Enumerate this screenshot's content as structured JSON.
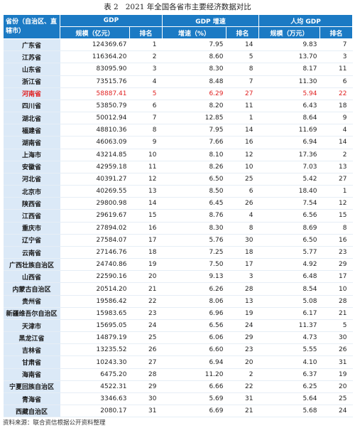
{
  "caption": {
    "number": "表 2",
    "title": "2021 年全国各省市主要经济数据对比"
  },
  "header": {
    "row_label": "省份（自治区、直辖市）",
    "groups": {
      "gdp": "GDP",
      "growth": "GDP 增速",
      "per_capita": "人均 GDP"
    },
    "sub": {
      "scale": "规模（亿元）",
      "rank": "排名",
      "rate": "增速（%）",
      "scale_wan": "规模（万元）"
    }
  },
  "rows": [
    {
      "name": "广东省",
      "gdp": "124369.67",
      "gdp_rank": "1",
      "growth": "7.95",
      "growth_rank": "14",
      "pc": "9.83",
      "pc_rank": "7"
    },
    {
      "name": "江苏省",
      "gdp": "116364.20",
      "gdp_rank": "2",
      "growth": "8.60",
      "growth_rank": "5",
      "pc": "13.70",
      "pc_rank": "3"
    },
    {
      "name": "山东省",
      "gdp": "83095.90",
      "gdp_rank": "3",
      "growth": "8.30",
      "growth_rank": "8",
      "pc": "8.17",
      "pc_rank": "11"
    },
    {
      "name": "浙江省",
      "gdp": "73515.76",
      "gdp_rank": "4",
      "growth": "8.48",
      "growth_rank": "7",
      "pc": "11.30",
      "pc_rank": "6"
    },
    {
      "name": "河南省",
      "gdp": "58887.41",
      "gdp_rank": "5",
      "growth": "6.29",
      "growth_rank": "27",
      "pc": "5.94",
      "pc_rank": "22",
      "highlight": true
    },
    {
      "name": "四川省",
      "gdp": "53850.79",
      "gdp_rank": "6",
      "growth": "8.20",
      "growth_rank": "11",
      "pc": "6.43",
      "pc_rank": "18"
    },
    {
      "name": "湖北省",
      "gdp": "50012.94",
      "gdp_rank": "7",
      "growth": "12.85",
      "growth_rank": "1",
      "pc": "8.64",
      "pc_rank": "9"
    },
    {
      "name": "福建省",
      "gdp": "48810.36",
      "gdp_rank": "8",
      "growth": "7.95",
      "growth_rank": "14",
      "pc": "11.69",
      "pc_rank": "4"
    },
    {
      "name": "湖南省",
      "gdp": "46063.09",
      "gdp_rank": "9",
      "growth": "7.66",
      "growth_rank": "16",
      "pc": "6.94",
      "pc_rank": "14"
    },
    {
      "name": "上海市",
      "gdp": "43214.85",
      "gdp_rank": "10",
      "growth": "8.10",
      "growth_rank": "12",
      "pc": "17.36",
      "pc_rank": "2"
    },
    {
      "name": "安徽省",
      "gdp": "42959.18",
      "gdp_rank": "11",
      "growth": "8.26",
      "growth_rank": "10",
      "pc": "7.03",
      "pc_rank": "13"
    },
    {
      "name": "河北省",
      "gdp": "40391.27",
      "gdp_rank": "12",
      "growth": "6.50",
      "growth_rank": "25",
      "pc": "5.42",
      "pc_rank": "27"
    },
    {
      "name": "北京市",
      "gdp": "40269.55",
      "gdp_rank": "13",
      "growth": "8.50",
      "growth_rank": "6",
      "pc": "18.40",
      "pc_rank": "1"
    },
    {
      "name": "陕西省",
      "gdp": "29800.98",
      "gdp_rank": "14",
      "growth": "6.45",
      "growth_rank": "26",
      "pc": "7.54",
      "pc_rank": "12"
    },
    {
      "name": "江西省",
      "gdp": "29619.67",
      "gdp_rank": "15",
      "growth": "8.76",
      "growth_rank": "4",
      "pc": "6.56",
      "pc_rank": "15"
    },
    {
      "name": "重庆市",
      "gdp": "27894.02",
      "gdp_rank": "16",
      "growth": "8.30",
      "growth_rank": "8",
      "pc": "8.69",
      "pc_rank": "8"
    },
    {
      "name": "辽宁省",
      "gdp": "27584.07",
      "gdp_rank": "17",
      "growth": "5.76",
      "growth_rank": "30",
      "pc": "6.50",
      "pc_rank": "16"
    },
    {
      "name": "云南省",
      "gdp": "27146.76",
      "gdp_rank": "18",
      "growth": "7.25",
      "growth_rank": "18",
      "pc": "5.77",
      "pc_rank": "23"
    },
    {
      "name": "广西壮族自治区",
      "gdp": "24740.86",
      "gdp_rank": "19",
      "growth": "7.50",
      "growth_rank": "17",
      "pc": "4.92",
      "pc_rank": "29"
    },
    {
      "name": "山西省",
      "gdp": "22590.16",
      "gdp_rank": "20",
      "growth": "9.13",
      "growth_rank": "3",
      "pc": "6.48",
      "pc_rank": "17"
    },
    {
      "name": "内蒙古自治区",
      "gdp": "20514.20",
      "gdp_rank": "21",
      "growth": "6.26",
      "growth_rank": "28",
      "pc": "8.54",
      "pc_rank": "10"
    },
    {
      "name": "贵州省",
      "gdp": "19586.42",
      "gdp_rank": "22",
      "growth": "8.06",
      "growth_rank": "13",
      "pc": "5.08",
      "pc_rank": "28"
    },
    {
      "name": "新疆维吾尔自治区",
      "gdp": "15983.65",
      "gdp_rank": "23",
      "growth": "6.96",
      "growth_rank": "19",
      "pc": "6.17",
      "pc_rank": "21"
    },
    {
      "name": "天津市",
      "gdp": "15695.05",
      "gdp_rank": "24",
      "growth": "6.56",
      "growth_rank": "24",
      "pc": "11.37",
      "pc_rank": "5"
    },
    {
      "name": "黑龙江省",
      "gdp": "14879.19",
      "gdp_rank": "25",
      "growth": "6.06",
      "growth_rank": "29",
      "pc": "4.73",
      "pc_rank": "30"
    },
    {
      "name": "吉林省",
      "gdp": "13235.52",
      "gdp_rank": "26",
      "growth": "6.60",
      "growth_rank": "23",
      "pc": "5.55",
      "pc_rank": "26"
    },
    {
      "name": "甘肃省",
      "gdp": "10243.30",
      "gdp_rank": "27",
      "growth": "6.94",
      "growth_rank": "20",
      "pc": "4.10",
      "pc_rank": "31"
    },
    {
      "name": "海南省",
      "gdp": "6475.20",
      "gdp_rank": "28",
      "growth": "11.20",
      "growth_rank": "2",
      "pc": "6.37",
      "pc_rank": "19"
    },
    {
      "name": "宁夏回族自治区",
      "gdp": "4522.31",
      "gdp_rank": "29",
      "growth": "6.66",
      "growth_rank": "22",
      "pc": "6.25",
      "pc_rank": "20"
    },
    {
      "name": "青海省",
      "gdp": "3346.63",
      "gdp_rank": "30",
      "growth": "5.69",
      "growth_rank": "31",
      "pc": "5.64",
      "pc_rank": "25"
    },
    {
      "name": "西藏自治区",
      "gdp": "2080.17",
      "gdp_rank": "31",
      "growth": "6.69",
      "growth_rank": "21",
      "pc": "5.68",
      "pc_rank": "24"
    }
  ],
  "source": "资料来源：联合资信根据公开资料整理",
  "colors": {
    "header_bg": "#1b7ac4",
    "name_cell_bg": "#dbe9f7",
    "highlight_text": "#e02020"
  }
}
